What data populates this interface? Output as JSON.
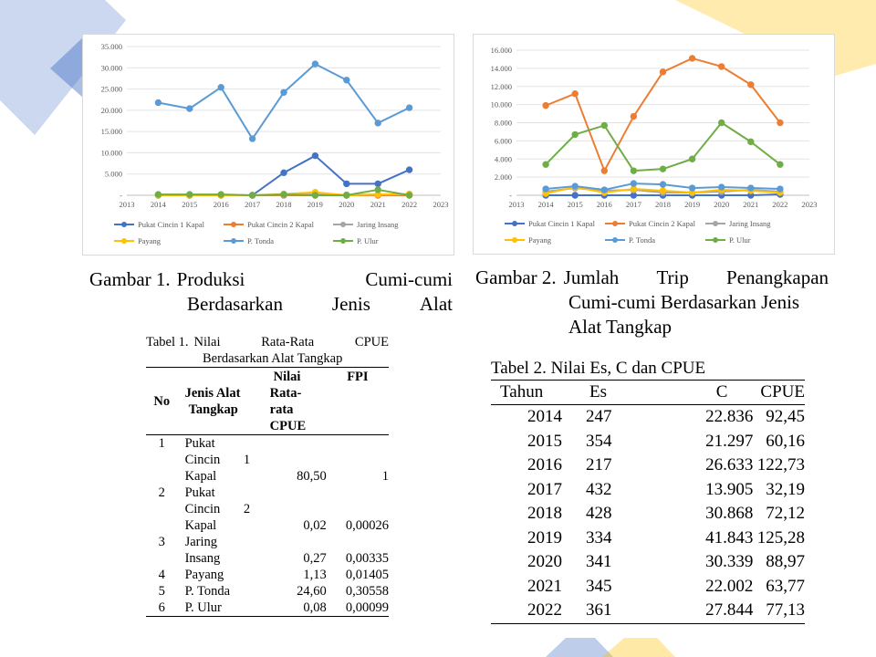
{
  "theme": {
    "deco_blue": "#4472c4",
    "deco_yellow": "#ffc000"
  },
  "figure1": {
    "caption_label": "Gambar 1.",
    "caption_line1": [
      "Produksi",
      "Cumi-cumi"
    ],
    "caption_line2": [
      "Berdasarkan",
      "Jenis",
      "Alat"
    ]
  },
  "figure2": {
    "caption_label": "Gambar 2.",
    "caption_line1": [
      "Jumlah",
      "Trip",
      "Penangkapan"
    ],
    "caption_line2": "Cumi-cumi Berdasarkan Jenis",
    "caption_line3": "Alat Tangkap"
  },
  "chart_data": [
    {
      "type": "line",
      "x": [
        2014,
        2015,
        2016,
        2017,
        2018,
        2019,
        2020,
        2021,
        2022
      ],
      "xlim": [
        2013,
        2023
      ],
      "x_ticks": [
        "2013",
        "2014",
        "2015",
        "2016",
        "2017",
        "2018",
        "2019",
        "2020",
        "2021",
        "2022",
        "2023"
      ],
      "ylim": [
        0,
        35000
      ],
      "y_ticks": [
        0,
        5000,
        10000,
        15000,
        20000,
        25000,
        30000,
        35000
      ],
      "y_tick_labels": [
        "-",
        "5.000",
        "10.000",
        "15.000",
        "20.000",
        "25.000",
        "30.000",
        "35.000"
      ],
      "grid": "horizontal",
      "legend_position": "bottom",
      "series": [
        {
          "name": "Pukat Cincin 1 Kapal",
          "color": "#4472c4",
          "values": [
            0,
            0,
            0,
            0,
            5300,
            9300,
            2700,
            2700,
            6000
          ]
        },
        {
          "name": "Pukat Cincin 2 Kapal",
          "color": "#ed7d31",
          "values": [
            0,
            0,
            0,
            0,
            0,
            0,
            0,
            0,
            0
          ]
        },
        {
          "name": "Jaring Insang",
          "color": "#a5a5a5",
          "values": [
            100,
            100,
            100,
            0,
            100,
            200,
            100,
            200,
            200
          ]
        },
        {
          "name": "Payang",
          "color": "#ffc000",
          "values": [
            0,
            0,
            0,
            0,
            300,
            700,
            0,
            200,
            300
          ]
        },
        {
          "name": "P. Tonda",
          "color": "#5b9bd5",
          "values": [
            21800,
            20400,
            25400,
            13300,
            24200,
            30900,
            27100,
            17000,
            20600
          ]
        },
        {
          "name": "P. Ulur",
          "color": "#70ad47",
          "values": [
            200,
            200,
            200,
            0,
            200,
            0,
            0,
            1300,
            0
          ]
        }
      ]
    },
    {
      "type": "line",
      "x": [
        2014,
        2015,
        2016,
        2017,
        2018,
        2019,
        2020,
        2021,
        2022
      ],
      "xlim": [
        2013,
        2023
      ],
      "x_ticks": [
        "2013",
        "2014",
        "2015",
        "2016",
        "2017",
        "2018",
        "2019",
        "2020",
        "2021",
        "2022",
        "2023"
      ],
      "ylim": [
        0,
        16000
      ],
      "y_ticks": [
        0,
        2000,
        4000,
        6000,
        8000,
        10000,
        12000,
        14000,
        16000
      ],
      "y_tick_labels": [
        "-",
        "2.000",
        "4.000",
        "6.000",
        "8.000",
        "10.000",
        "12.000",
        "14.000",
        "16.000"
      ],
      "grid": "horizontal",
      "legend_position": "bottom",
      "series": [
        {
          "name": "Pukat Cincin 1 Kapal",
          "color": "#4472c4",
          "values": [
            0,
            0,
            0,
            0,
            0,
            0,
            0,
            0,
            100
          ]
        },
        {
          "name": "Pukat Cincin 2 Kapal",
          "color": "#ed7d31",
          "values": [
            9900,
            11200,
            2700,
            8700,
            13600,
            15100,
            14200,
            12200,
            8000
          ]
        },
        {
          "name": "Jaring Insang",
          "color": "#a5a5a5",
          "values": [
            400,
            800,
            500,
            600,
            300,
            300,
            400,
            600,
            400
          ]
        },
        {
          "name": "Payang",
          "color": "#ffc000",
          "values": [
            200,
            900,
            300,
            700,
            500,
            300,
            600,
            500,
            300
          ]
        },
        {
          "name": "P. Tonda",
          "color": "#5b9bd5",
          "values": [
            700,
            1000,
            600,
            1300,
            1200,
            800,
            900,
            800,
            700
          ]
        },
        {
          "name": "P. Ulur",
          "color": "#70ad47",
          "values": [
            3400,
            6700,
            7700,
            2700,
            2900,
            4000,
            8000,
            5900,
            3400
          ]
        }
      ]
    }
  ],
  "table1": {
    "caption_line1": [
      "Tabel 1.",
      "Nilai",
      "Rata-Rata",
      "CPUE"
    ],
    "caption_line2": "Berdasarkan Alat Tangkap",
    "headers": {
      "no": "No",
      "jenis": [
        "Jenis Alat",
        "Tangkap"
      ],
      "nilai": [
        "Nilai",
        "Rata-",
        "rata",
        "CPUE"
      ],
      "fpi": "FPI"
    },
    "rows": [
      {
        "no": "1",
        "jenis": [
          "Pukat",
          "Cincin 1",
          "Kapal"
        ],
        "nilai": "80,50",
        "fpi": "1"
      },
      {
        "no": "2",
        "jenis": [
          "Pukat",
          "Cincin 2",
          "Kapal"
        ],
        "nilai": "0,02",
        "fpi": "0,00026"
      },
      {
        "no": "3",
        "jenis": [
          "Jaring",
          "Insang"
        ],
        "nilai": "0,27",
        "fpi": "0,00335"
      },
      {
        "no": "4",
        "jenis": [
          "Payang"
        ],
        "nilai": "1,13",
        "fpi": "0,01405"
      },
      {
        "no": "5",
        "jenis": [
          "P. Tonda"
        ],
        "nilai": "24,60",
        "fpi": "0,30558"
      },
      {
        "no": "6",
        "jenis": [
          "P. Ulur"
        ],
        "nilai": "0,08",
        "fpi": "0,00099"
      }
    ]
  },
  "table2": {
    "caption": "Tabel 2. Nilai Es, C dan CPUE",
    "headers": [
      "Tahun",
      "Es",
      "C",
      "CPUE"
    ],
    "rows": [
      [
        "2014",
        "247",
        "22.836",
        "92,45"
      ],
      [
        "2015",
        "354",
        "21.297",
        "60,16"
      ],
      [
        "2016",
        "217",
        "26.633",
        "122,73"
      ],
      [
        "2017",
        "432",
        "13.905",
        "32,19"
      ],
      [
        "2018",
        "428",
        "30.868",
        "72,12"
      ],
      [
        "2019",
        "334",
        "41.843",
        "125,28"
      ],
      [
        "2020",
        "341",
        "30.339",
        "88,97"
      ],
      [
        "2021",
        "345",
        "22.002",
        "63,77"
      ],
      [
        "2022",
        "361",
        "27.844",
        "77,13"
      ]
    ]
  }
}
